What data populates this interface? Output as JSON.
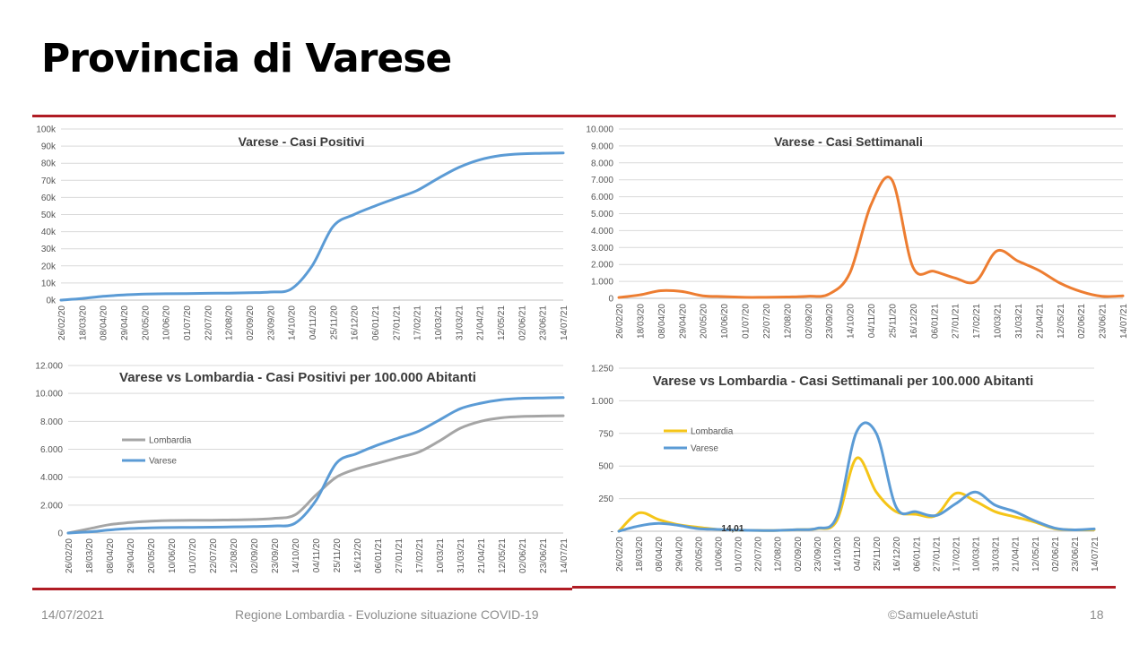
{
  "slide": {
    "title": "Provincia di Varese",
    "footer": {
      "date": "14/07/2021",
      "source": "Regione Lombardia - Evoluzione situazione COVID-19",
      "author": "©SamueleAstuti",
      "page": "18"
    }
  },
  "colors": {
    "rule": "#b01c24",
    "varese": "#5b9bd5",
    "orange": "#ed7d31",
    "lombardia_gray": "#a5a5a5",
    "lombardia_yellow": "#f5c518",
    "grid": "#d9d9d9"
  },
  "chart_data": [
    {
      "id": "casi-positivi",
      "type": "line",
      "title": "Varese - Casi Positivi",
      "xlabel": "",
      "ylabel": "",
      "ylim": [
        0,
        100000
      ],
      "yticks": [
        "0k",
        "10k",
        "20k",
        "30k",
        "40k",
        "50k",
        "60k",
        "70k",
        "80k",
        "90k",
        "100k"
      ],
      "grid": true,
      "x_ticks": [
        "26/02/20",
        "18/03/20",
        "08/04/20",
        "29/04/20",
        "20/05/20",
        "10/06/20",
        "01/07/20",
        "22/07/20",
        "12/08/20",
        "02/09/20",
        "23/09/20",
        "14/10/20",
        "04/11/20",
        "25/11/20",
        "16/12/20",
        "06/01/21",
        "27/01/21",
        "17/02/21",
        "10/03/21",
        "31/03/21",
        "21/04/21",
        "12/05/21",
        "02/06/21",
        "23/06/21",
        "14/07/21"
      ],
      "series": [
        {
          "color": "#5b9bd5",
          "values": [
            0,
            900,
            2200,
            3000,
            3500,
            3700,
            3800,
            4000,
            4100,
            4300,
            4700,
            6500,
            20000,
            43000,
            50000,
            55000,
            59500,
            64000,
            71000,
            77500,
            82000,
            84500,
            85500,
            85800,
            86000
          ]
        }
      ]
    },
    {
      "id": "casi-settimanali",
      "type": "line",
      "title": "Varese - Casi Settimanali",
      "xlabel": "",
      "ylabel": "",
      "ylim": [
        0,
        10000
      ],
      "yticks": [
        "0",
        "1.000",
        "2.000",
        "3.000",
        "4.000",
        "5.000",
        "6.000",
        "7.000",
        "8.000",
        "9.000",
        "10.000"
      ],
      "grid": true,
      "x_ticks": [
        "26/02/20",
        "18/03/20",
        "08/04/20",
        "29/04/20",
        "20/05/20",
        "10/06/20",
        "01/07/20",
        "22/07/20",
        "12/08/20",
        "02/09/20",
        "23/09/20",
        "14/10/20",
        "04/11/20",
        "25/11/20",
        "16/12/20",
        "06/01/21",
        "27/01/21",
        "17/02/21",
        "10/03/21",
        "31/03/21",
        "21/04/21",
        "12/05/21",
        "02/06/21",
        "23/06/21",
        "14/07/21"
      ],
      "series": [
        {
          "color": "#ed7d31",
          "values": [
            50,
            200,
            450,
            400,
            150,
            100,
            60,
            60,
            80,
            120,
            250,
            1500,
            5500,
            7000,
            1850,
            1600,
            1200,
            1000,
            2800,
            2200,
            1650,
            900,
            400,
            120,
            150
          ]
        }
      ]
    },
    {
      "id": "casi-positivi-100k",
      "type": "line",
      "title": "Varese vs Lombardia - Casi Positivi per 100.000 Abitanti",
      "xlabel": "",
      "ylabel": "",
      "ylim": [
        0,
        12000
      ],
      "yticks": [
        "0",
        "2.000",
        "4.000",
        "6.000",
        "8.000",
        "10.000",
        "12.000"
      ],
      "grid": true,
      "legend": "left",
      "x_ticks": [
        "26/02/20",
        "18/03/20",
        "08/04/20",
        "29/04/20",
        "20/05/20",
        "10/06/20",
        "01/07/20",
        "22/07/20",
        "12/08/20",
        "02/09/20",
        "23/09/20",
        "14/10/20",
        "04/11/20",
        "25/11/20",
        "16/12/20",
        "06/01/21",
        "27/01/21",
        "17/02/21",
        "10/03/21",
        "31/03/21",
        "21/04/21",
        "12/05/21",
        "02/06/21",
        "23/06/21",
        "14/07/21"
      ],
      "series": [
        {
          "name": "Lombardia",
          "color": "#a5a5a5",
          "values": [
            0,
            300,
            600,
            750,
            850,
            900,
            910,
            920,
            940,
            970,
            1050,
            1300,
            2700,
            4000,
            4600,
            5000,
            5400,
            5800,
            6600,
            7500,
            8000,
            8250,
            8350,
            8380,
            8400
          ]
        },
        {
          "name": "Varese",
          "color": "#5b9bd5",
          "values": [
            0,
            80,
            220,
            320,
            370,
            390,
            400,
            420,
            440,
            470,
            510,
            700,
            2300,
            5000,
            5700,
            6300,
            6800,
            7300,
            8100,
            8900,
            9300,
            9550,
            9650,
            9680,
            9700
          ]
        }
      ]
    },
    {
      "id": "casi-settimanali-100k",
      "type": "line",
      "title": "Varese vs Lombardia - Casi Settimanali per 100.000 Abitanti",
      "xlabel": "",
      "ylabel": "",
      "ylim": [
        0,
        1250
      ],
      "yticks": [
        "-",
        "250",
        "500",
        "750",
        "1.000",
        "1.250"
      ],
      "grid": true,
      "legend": "left",
      "annotation": {
        "text": "14,01",
        "series": 1,
        "index": 5
      },
      "x_ticks": [
        "26/02/20",
        "18/03/20",
        "08/04/20",
        "29/04/20",
        "20/05/20",
        "10/06/20",
        "01/07/20",
        "22/07/20",
        "12/08/20",
        "02/09/20",
        "23/09/20",
        "14/10/20",
        "04/11/20",
        "25/11/20",
        "16/12/20",
        "06/01/21",
        "27/01/21",
        "17/02/21",
        "10/03/21",
        "31/03/21",
        "21/04/21",
        "12/05/21",
        "02/06/21",
        "23/06/21",
        "14/07/21"
      ],
      "series": [
        {
          "name": "Lombardia",
          "color": "#f5c518",
          "values": [
            0,
            140,
            90,
            50,
            30,
            14,
            8,
            6,
            6,
            12,
            20,
            80,
            560,
            300,
            150,
            130,
            120,
            290,
            230,
            150,
            110,
            70,
            20,
            10,
            12
          ]
        },
        {
          "name": "Varese",
          "color": "#5b9bd5",
          "values": [
            0,
            40,
            60,
            45,
            20,
            14.01,
            8,
            6,
            6,
            12,
            22,
            110,
            760,
            750,
            185,
            150,
            120,
            210,
            300,
            200,
            150,
            80,
            25,
            10,
            18
          ]
        }
      ]
    }
  ]
}
